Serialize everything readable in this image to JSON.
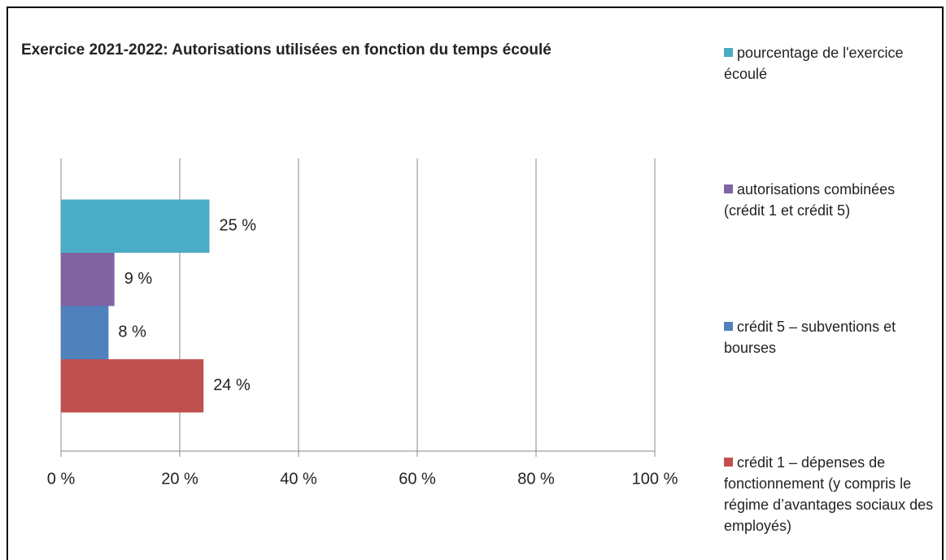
{
  "chart_data": {
    "type": "bar",
    "orientation": "horizontal",
    "title": "Exercice 2021-2022: Autorisations utilisées en fonction du temps écoulé",
    "series": [
      {
        "name": "pourcentage de l'exercice écoulé",
        "color": "#4bacc6",
        "values": [
          25
        ],
        "value_labels": [
          "25 %"
        ]
      },
      {
        "name": "autorisations combinées (crédit 1 et crédit 5)",
        "color": "#8064a2",
        "values": [
          9
        ],
        "value_labels": [
          "9 %"
        ]
      },
      {
        "name": "crédit 5 – subventions et bourses",
        "color": "#4f81bd",
        "values": [
          8
        ],
        "value_labels": [
          "8 %"
        ]
      },
      {
        "name": "crédit 1 – dépenses de fonctionnement (y compris le régime d’avantages sociaux des employés)",
        "color": "#c0504d",
        "values": [
          24
        ],
        "value_labels": [
          "24 %"
        ]
      }
    ],
    "xlim": [
      0,
      100
    ],
    "xticks": [
      {
        "value": 0,
        "label": "0 %"
      },
      {
        "value": 20,
        "label": "20 %"
      },
      {
        "value": 40,
        "label": "40 %"
      },
      {
        "value": 60,
        "label": "60 %"
      },
      {
        "value": 80,
        "label": "80 %"
      },
      {
        "value": 100,
        "label": "100 %"
      }
    ],
    "grid": true,
    "legend": "right"
  }
}
